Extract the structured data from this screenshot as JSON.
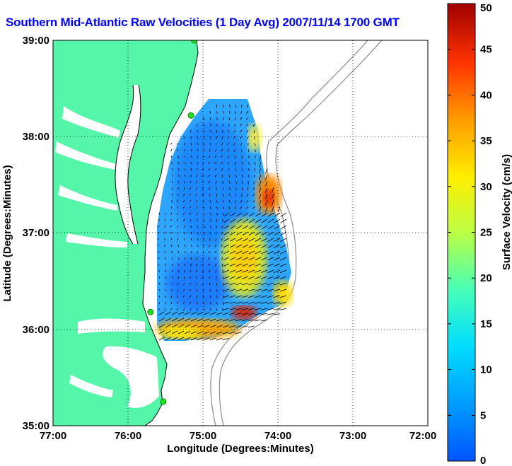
{
  "title": "Southern Mid-Atlantic Raw Velocities (1 Day Avg) 2007/11/14 1700 GMT",
  "title_color": "#0000ff",
  "xlabel": "Longitude (Degrees:Minutes)",
  "ylabel": "Latitude (Degrees:Minutes)",
  "x_ticks": [
    "77:00",
    "76:00",
    "75:00",
    "74:00",
    "73:00",
    "72:00"
  ],
  "y_ticks": [
    "39:00",
    "38:00",
    "37:00",
    "36:00",
    "35:00"
  ],
  "colorbar": {
    "label": "Surface Velocity (cm/s)",
    "ticks": [
      "0",
      "5",
      "10",
      "15",
      "20",
      "25",
      "30",
      "35",
      "40",
      "45",
      "50"
    ],
    "range": [
      0,
      50
    ]
  },
  "colors": {
    "land": "#55f5aa",
    "water": "#ffffff",
    "coast": "#000000",
    "bathymetry": "#8a8a8a",
    "station": "#22dd22"
  },
  "chart_data": {
    "type": "heatmap",
    "title": "Southern Mid-Atlantic Raw Velocities (1 Day Avg) 2007/11/14 1700 GMT",
    "xlabel": "Longitude (Degrees:Minutes)",
    "ylabel": "Latitude (Degrees:Minutes)",
    "xlim": [
      -77.0,
      -72.0
    ],
    "ylim": [
      35.0,
      39.0
    ],
    "grid": true,
    "colorbar_label": "Surface Velocity (cm/s)",
    "clim": [
      0,
      50
    ],
    "stations": [
      {
        "lon": -75.12,
        "lat": 39.0
      },
      {
        "lon": -75.16,
        "lat": 38.22
      },
      {
        "lon": -75.7,
        "lat": 36.18
      },
      {
        "lon": -75.53,
        "lat": 35.25
      }
    ]
  }
}
